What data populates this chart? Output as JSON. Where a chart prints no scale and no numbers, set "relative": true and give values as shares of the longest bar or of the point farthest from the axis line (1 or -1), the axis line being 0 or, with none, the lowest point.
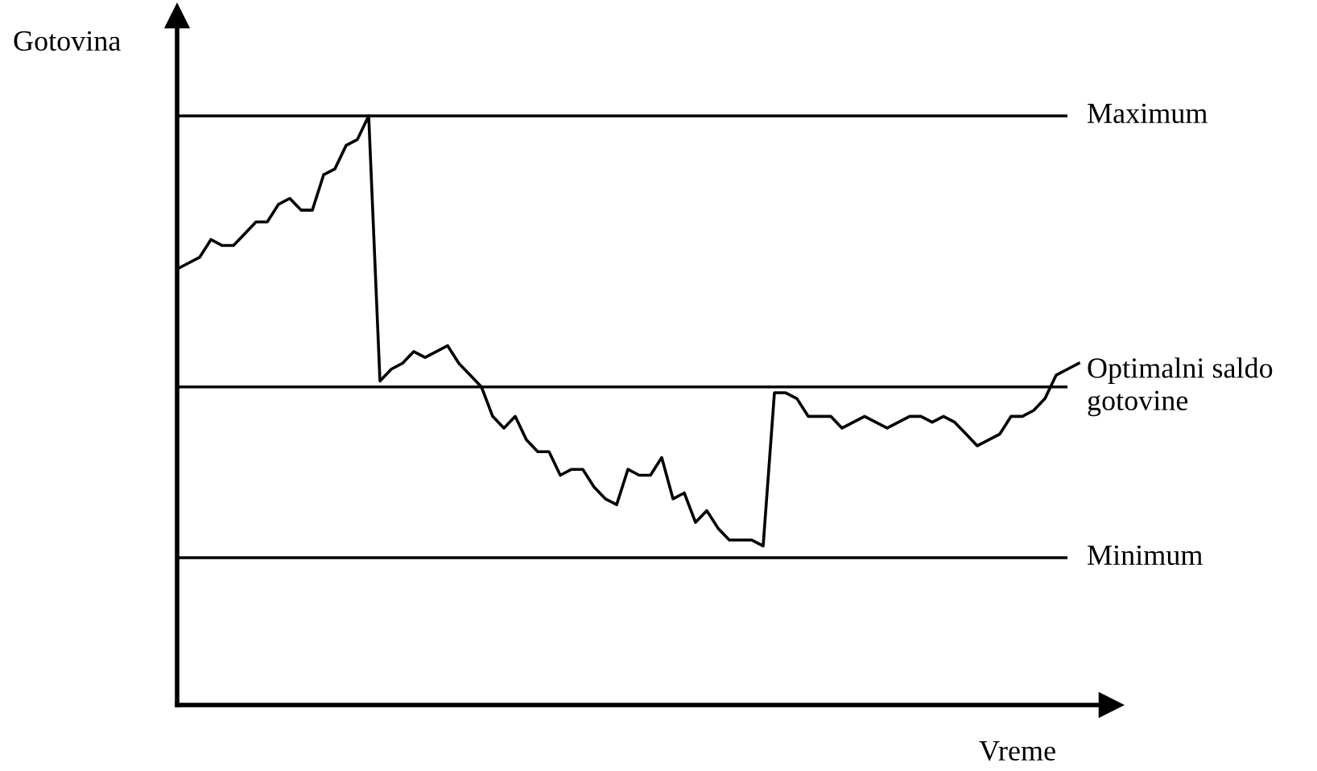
{
  "chart_data": {
    "type": "line",
    "relative": true,
    "xlabel": "Vreme",
    "ylabel": "Gotovina",
    "categories": [
      null,
      null,
      null,
      null,
      null,
      null,
      null,
      null,
      null,
      null,
      null,
      null,
      null,
      null,
      null,
      null,
      null,
      null,
      null,
      null,
      null,
      null,
      null,
      null,
      null,
      null,
      null,
      null,
      null,
      null,
      null,
      null,
      null,
      null,
      null,
      null,
      null,
      null,
      null,
      null,
      null,
      null,
      null,
      null,
      null,
      null,
      null,
      null,
      null,
      null,
      null,
      null,
      null,
      null,
      null,
      null,
      null,
      null,
      null,
      null,
      null,
      null,
      null,
      null,
      null,
      null,
      null,
      null,
      null,
      null,
      null,
      null,
      null,
      null,
      null,
      null,
      null,
      null,
      null,
      null,
      null
    ],
    "series": [
      {
        "color": "#000000",
        "values": [
          0.74,
          0.75,
          0.76,
          0.79,
          0.78,
          0.78,
          0.8,
          0.82,
          0.82,
          0.85,
          0.86,
          0.84,
          0.84,
          0.9,
          0.91,
          0.95,
          0.96,
          1,
          0.55,
          0.57,
          0.58,
          0.6,
          0.59,
          0.6,
          0.61,
          0.58,
          0.56,
          0.54,
          0.49,
          0.47,
          0.49,
          0.45,
          0.43,
          0.43,
          0.39,
          0.4,
          0.4,
          0.37,
          0.35,
          0.34,
          0.4,
          0.39,
          0.39,
          0.42,
          0.35,
          0.36,
          0.31,
          0.33,
          0.3,
          0.28,
          0.28,
          0.28,
          0.27,
          0.53,
          0.53,
          0.52,
          0.49,
          0.49,
          0.49,
          0.47,
          0.48,
          0.49,
          0.48,
          0.47,
          0.48,
          0.49,
          0.49,
          0.48,
          0.49,
          0.48,
          0.46,
          0.44,
          0.45,
          0.46,
          0.49,
          0.49,
          0.5,
          0.52,
          0.56,
          0.57,
          0.58
        ]
      }
    ],
    "ref_lines": [
      {
        "axis": "y",
        "value": 1,
        "label": "Maximum",
        "color": "#000000"
      },
      {
        "axis": "y",
        "value": 0.54,
        "label": "Optimalni saldo\ngotovine",
        "color": "#000000"
      },
      {
        "axis": "y",
        "value": 0.25,
        "label": "Minimum",
        "color": "#000000"
      }
    ],
    "marker": "none",
    "line_style": "solid",
    "grid": false,
    "legend": false
  }
}
